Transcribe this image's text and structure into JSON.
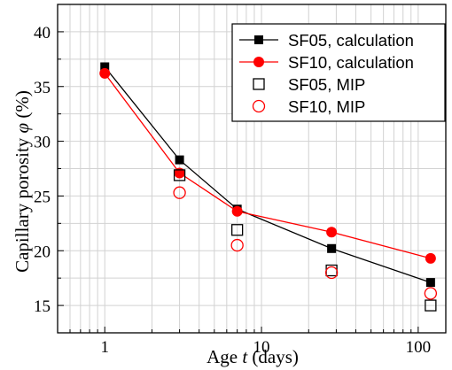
{
  "chart_data": {
    "type": "scatter",
    "ylabel_prefix": "Capillary porosity ",
    "ylabel_symbol": "φ",
    "ylabel_suffix": " (%)",
    "xlabel_prefix": "Age ",
    "xlabel_symbol": "t",
    "xlabel_suffix": " (days)",
    "x_scale": "log",
    "xlim": [
      0.5,
      150
    ],
    "ylim": [
      12.5,
      42.5
    ],
    "x_ticks": [
      1,
      10,
      100
    ],
    "x_tick_labels": [
      "1",
      "10",
      "100"
    ],
    "y_ticks": [
      15,
      20,
      25,
      30,
      35,
      40
    ],
    "y_tick_labels": [
      "15",
      "20",
      "25",
      "30",
      "35",
      "40"
    ],
    "grid": true,
    "legend_position": "top-right",
    "series": [
      {
        "name": "SF05, calculation",
        "style": "line+filled-square",
        "color": "#000000",
        "x": [
          1,
          3,
          7,
          28,
          120
        ],
        "y": [
          36.8,
          28.3,
          23.8,
          20.2,
          17.1
        ]
      },
      {
        "name": "SF10, calculation",
        "style": "line+filled-circle",
        "color": "#ff0000",
        "x": [
          1,
          3,
          7,
          28,
          120
        ],
        "y": [
          36.2,
          27.1,
          23.6,
          21.7,
          19.3
        ]
      },
      {
        "name": "SF05, MIP",
        "style": "open-square",
        "color": "#000000",
        "x": [
          3,
          7,
          28,
          120
        ],
        "y": [
          26.9,
          21.9,
          18.2,
          15.0
        ]
      },
      {
        "name": "SF10, MIP",
        "style": "open-circle",
        "color": "#ff0000",
        "x": [
          3,
          7,
          28,
          120
        ],
        "y": [
          25.3,
          20.5,
          18.0,
          16.1
        ]
      }
    ]
  }
}
